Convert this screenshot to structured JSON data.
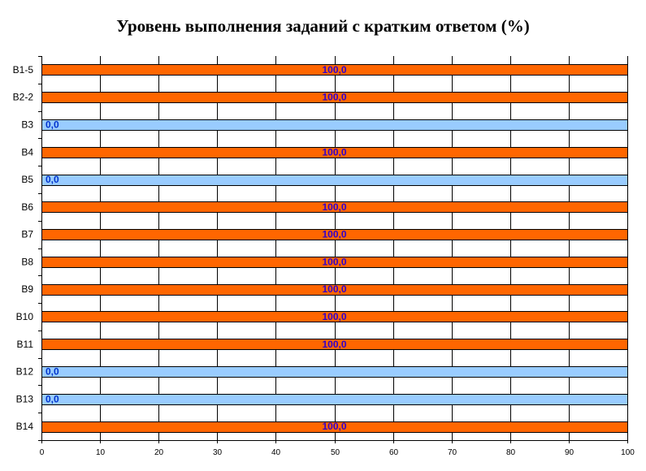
{
  "chart_data": {
    "type": "bar",
    "orientation": "horizontal",
    "title": "Уровень выполнения заданий с кратким ответом (%)",
    "xlabel": "",
    "ylabel": "",
    "xlim": [
      0,
      100
    ],
    "x_ticks": [
      "0",
      "10",
      "20",
      "30",
      "40",
      "50",
      "60",
      "70",
      "80",
      "90",
      "100"
    ],
    "grid": true,
    "categories": [
      "B1-5",
      "B2-2",
      "B3",
      "B4",
      "B5",
      "B6",
      "B7",
      "B8",
      "B9",
      "B10",
      "B11",
      "B12",
      "B13",
      "B14"
    ],
    "values": [
      100,
      100,
      0,
      100,
      0,
      100,
      100,
      100,
      100,
      100,
      100,
      0,
      0,
      100
    ],
    "value_labels": [
      "100,0",
      "100,0",
      "0,0",
      "100,0",
      "0,0",
      "100,0",
      "100,0",
      "100,0",
      "100,0",
      "100,0",
      "100,0",
      "0,0",
      "0,0",
      "100,0"
    ],
    "colors": {
      "complete": "#ff6600",
      "zero": "#99ccff",
      "label_complete": "#3300cc",
      "label_zero": "#0033cc",
      "grid": "#000000"
    }
  }
}
